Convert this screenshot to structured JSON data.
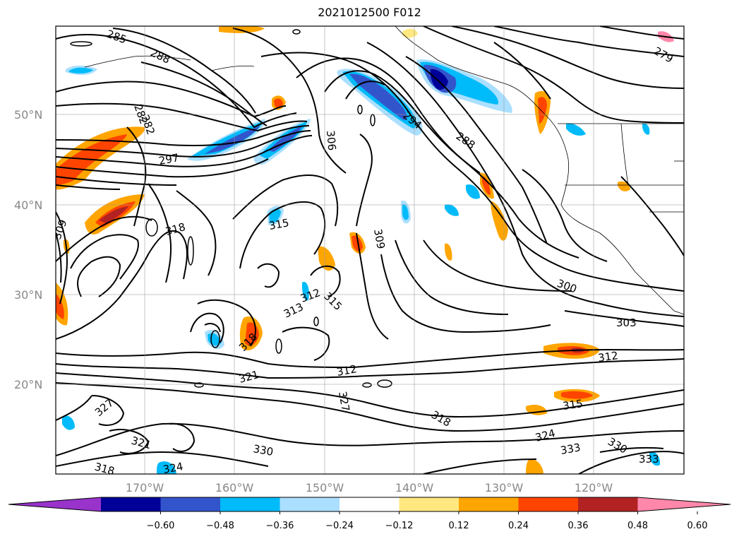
{
  "title": "2021012500 F012",
  "map": {
    "lat_labels": [
      "50°N",
      "40°N",
      "30°N",
      "20°N"
    ],
    "lon_labels": [
      "170°W",
      "160°W",
      "150°W",
      "140°W",
      "130°W",
      "120°W"
    ],
    "contour_labels": [
      "285",
      "288",
      "282",
      "282",
      "297",
      "306",
      "294",
      "288",
      "279",
      "309",
      "318",
      "315",
      "309",
      "300",
      "303",
      "312",
      "315",
      "313",
      "318",
      "321",
      "312",
      "327",
      "318",
      "324",
      "333",
      "330",
      "333",
      "327",
      "321",
      "318",
      "324",
      "330",
      "315",
      "312"
    ]
  },
  "colorbar": {
    "ticks": [
      "−0.60",
      "−0.48",
      "−0.36",
      "−0.24",
      "−0.12",
      "0.12",
      "0.24",
      "0.36",
      "0.48",
      "0.60"
    ],
    "colors": [
      "#9933cc",
      "#000099",
      "#3355cc",
      "#00bbf9",
      "#aadfff",
      "#ffffff",
      "#ffe880",
      "#ffa500",
      "#ff4400",
      "#b22222",
      "#ff88aa"
    ]
  }
}
